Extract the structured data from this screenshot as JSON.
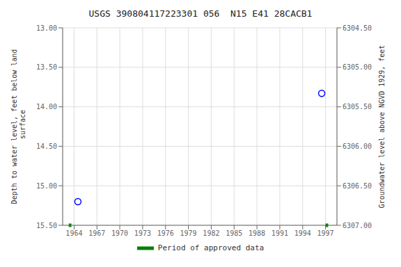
{
  "chart_data": {
    "type": "scatter",
    "title": "USGS 390804117223301 056  N15 E41 28CACB1",
    "y_label": "Depth to water level, feet below land\n surface",
    "y2_label": "Groundwater level above NGVD 1929, feet",
    "xlim": [
      1962.5,
      1998.5
    ],
    "xticks": [
      1964,
      1967,
      1970,
      1973,
      1976,
      1979,
      1982,
      1985,
      1988,
      1991,
      1994,
      1997
    ],
    "ylim": [
      15.5,
      13.0
    ],
    "yticks": [
      {
        "value": 13.0,
        "label": "13.00"
      },
      {
        "value": 13.5,
        "label": "13.50"
      },
      {
        "value": 14.0,
        "label": "14.00"
      },
      {
        "value": 14.5,
        "label": "14.50"
      },
      {
        "value": 15.0,
        "label": "15.00"
      },
      {
        "value": 15.5,
        "label": "15.50"
      }
    ],
    "y2lim": [
      6307.0,
      6304.5
    ],
    "y2ticks": [
      {
        "value": 6307.0,
        "label": "6307.00"
      },
      {
        "value": 6306.5,
        "label": "6306.50"
      },
      {
        "value": 6306.0,
        "label": "6306.00"
      },
      {
        "value": 6305.5,
        "label": "6305.50"
      },
      {
        "value": 6305.0,
        "label": "6305.00"
      },
      {
        "value": 6304.5,
        "label": "6304.50"
      }
    ],
    "grid": true,
    "series": [
      {
        "type": "scatter",
        "color": "blue",
        "marker": "o",
        "x": [
          1964.5,
          1996.5
        ],
        "values": [
          15.2,
          13.83
        ]
      },
      {
        "type": "period",
        "name": "Period of approved data",
        "color": "#008000",
        "periods": [
          [
            1963.3,
            1963.65
          ],
          [
            1997.0,
            1997.35
          ]
        ]
      }
    ]
  }
}
